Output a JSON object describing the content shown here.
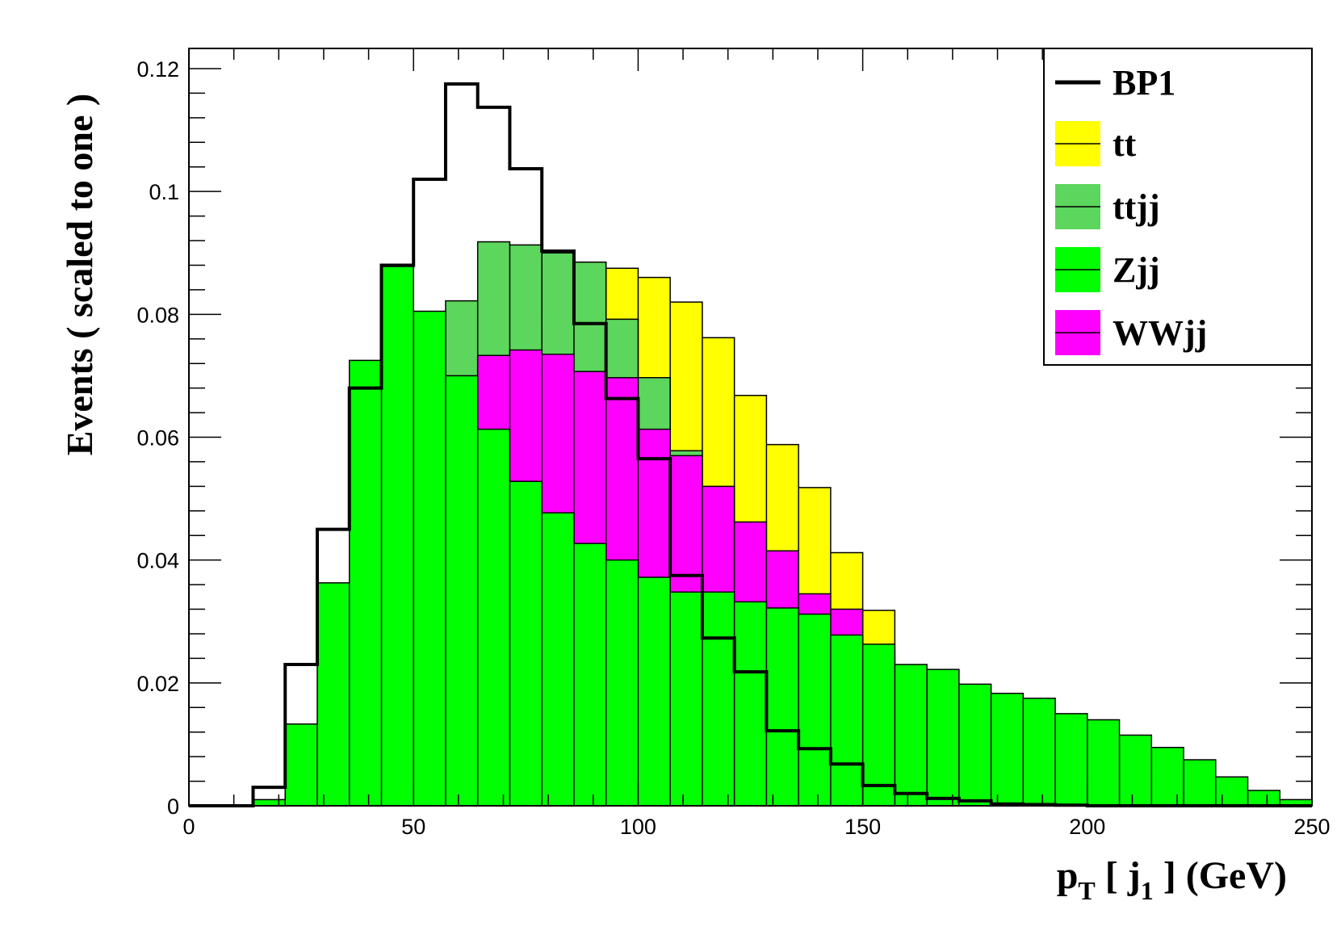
{
  "chart_data": {
    "type": "histogram",
    "xlabel": {
      "main": "p",
      "sub": "T",
      "mid": " [ j",
      "sub2": "1",
      "tail": " ] (GeV)"
    },
    "ylabel": "Events  ( scaled to one )",
    "xlim": [
      0,
      250
    ],
    "ylim": [
      0,
      0.12
    ],
    "xticks": [
      0,
      50,
      100,
      150,
      200,
      250
    ],
    "xtick_labels": [
      "0",
      "50",
      "100",
      "150",
      "200",
      "250"
    ],
    "yticks": [
      0,
      0.02,
      0.04,
      0.06,
      0.08,
      0.1,
      0.12
    ],
    "ytick_labels": [
      "0",
      "0.02",
      "0.04",
      "0.06",
      "0.08",
      "0.1",
      "0.12"
    ],
    "bin_width": 7.1429,
    "bin_lows": [
      0,
      7.14,
      14.29,
      21.43,
      28.57,
      35.71,
      42.86,
      50,
      57.14,
      64.29,
      71.43,
      78.57,
      85.71,
      92.86,
      100,
      107.14,
      114.29,
      121.43,
      128.57,
      135.71,
      142.86,
      150,
      157.14,
      164.29,
      171.43,
      178.57,
      185.71,
      192.86,
      200,
      207.14,
      214.29,
      221.43,
      228.57,
      235.71,
      242.86
    ],
    "legend_position": "top-right",
    "legend": [
      {
        "label": "BP1",
        "style": "line"
      },
      {
        "label": "tt",
        "style": "fill"
      },
      {
        "label": "ttjj",
        "style": "fill"
      },
      {
        "label": "Zjj",
        "style": "fill"
      },
      {
        "label": "WWjj",
        "style": "fill"
      }
    ],
    "series": [
      {
        "name": "BP1",
        "draw": "outline",
        "color": "#000000",
        "values": [
          0,
          0,
          0.003,
          0.023,
          0.045,
          0.068,
          0.088,
          0.102,
          0.1175,
          0.1137,
          0.1037,
          0.0903,
          0.0785,
          0.0663,
          0.0565,
          0.0375,
          0.0273,
          0.0218,
          0.0122,
          0.0093,
          0.0068,
          0.0033,
          0.002,
          0.0012,
          0.0008,
          0.0003,
          0.0002,
          0.0001,
          0,
          0,
          0,
          0,
          0,
          0,
          0
        ]
      },
      {
        "name": "tt",
        "draw": "filled",
        "color": "#ffff00",
        "values": [
          0,
          0,
          0,
          0,
          0,
          0,
          0,
          0,
          0,
          0,
          0,
          0,
          0,
          0.0875,
          0.086,
          0.082,
          0.0762,
          0.0668,
          0.0588,
          0.0518,
          0.0412,
          0.0318,
          0,
          0,
          0,
          0,
          0,
          0,
          0,
          0,
          0,
          0,
          0,
          0,
          0
        ]
      },
      {
        "name": "ttjj",
        "draw": "filled",
        "color": "#5cd65c",
        "values": [
          0,
          0,
          0,
          0,
          0,
          0,
          0,
          0.0803,
          0.0822,
          0.0918,
          0.0913,
          0.09,
          0.0885,
          0.0792,
          0.0697,
          0.0578,
          0,
          0,
          0,
          0,
          0,
          0,
          0,
          0,
          0,
          0,
          0,
          0,
          0,
          0,
          0,
          0,
          0,
          0,
          0
        ]
      },
      {
        "name": "WWjj",
        "draw": "filled",
        "color": "#ff00ff",
        "values": [
          0,
          0,
          0,
          0,
          0,
          0,
          0,
          0,
          0,
          0.0733,
          0.0742,
          0.0735,
          0.0707,
          0.0697,
          0.0613,
          0.057,
          0.052,
          0.0462,
          0.0415,
          0.0345,
          0.032,
          0.0253,
          0,
          0,
          0,
          0,
          0,
          0,
          0,
          0,
          0,
          0,
          0,
          0,
          0
        ]
      },
      {
        "name": "Zjj",
        "draw": "filled",
        "color": "#00ff00",
        "values": [
          0,
          0,
          0.001,
          0.0133,
          0.0363,
          0.0725,
          0.0878,
          0.0805,
          0.07,
          0.0613,
          0.0528,
          0.0477,
          0.0427,
          0.04,
          0.0372,
          0.0348,
          0.0348,
          0.0332,
          0.0322,
          0.0312,
          0.0278,
          0.0263,
          0.023,
          0.0222,
          0.0198,
          0.0183,
          0.0175,
          0.015,
          0.014,
          0.0115,
          0.0095,
          0.0075,
          0.0047,
          0.0025,
          0.001
        ]
      }
    ],
    "draw_order": [
      "tt",
      "ttjj",
      "WWjj",
      "Zjj",
      "BP1"
    ]
  }
}
